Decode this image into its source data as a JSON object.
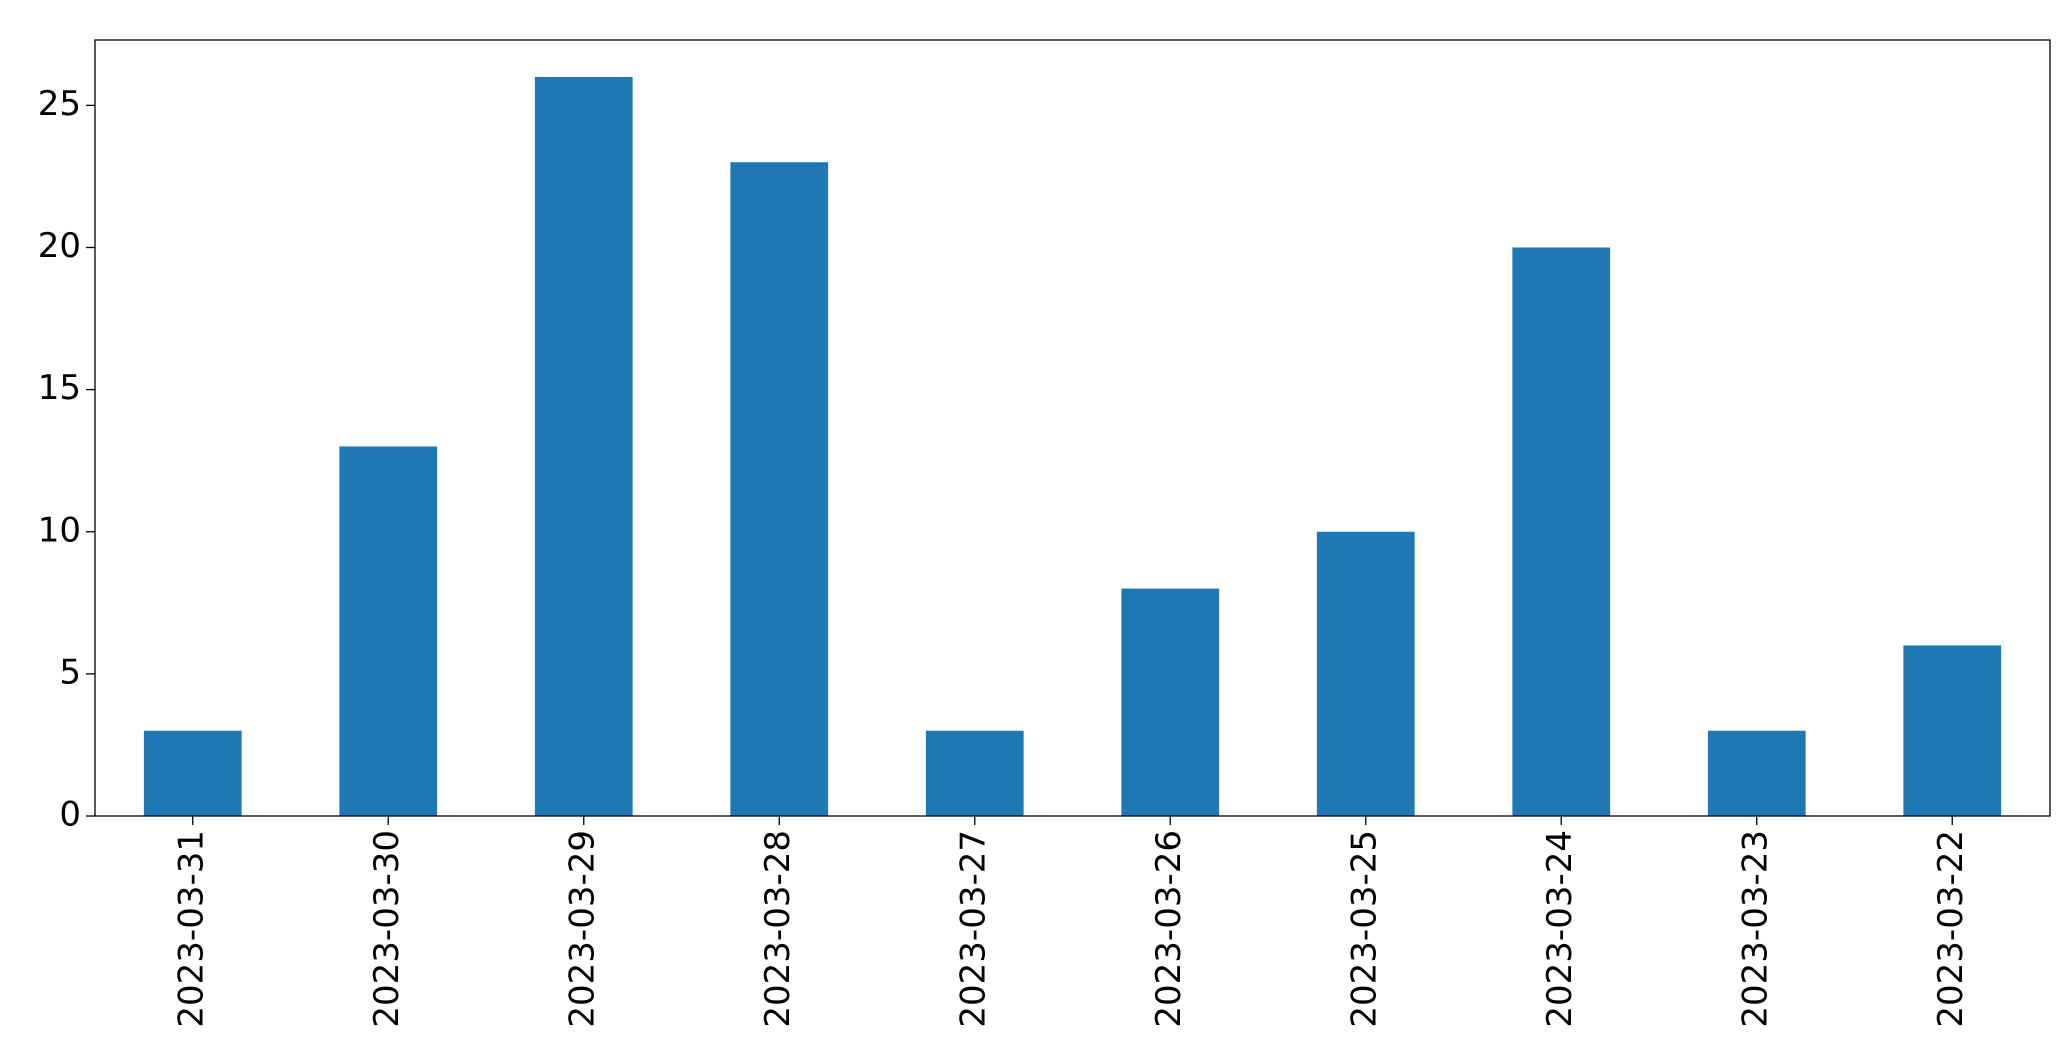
{
  "chart_data": {
    "type": "bar",
    "categories": [
      "2023-03-31",
      "2023-03-30",
      "2023-03-29",
      "2023-03-28",
      "2023-03-27",
      "2023-03-26",
      "2023-03-25",
      "2023-03-24",
      "2023-03-23",
      "2023-03-22"
    ],
    "values": [
      3,
      13,
      26,
      23,
      3,
      8,
      10,
      20,
      3,
      6
    ],
    "color": "#1f77b4",
    "ylim": [
      0,
      27.3
    ],
    "yticks": [
      0,
      5,
      10,
      15,
      20,
      25
    ],
    "grid": false
  }
}
